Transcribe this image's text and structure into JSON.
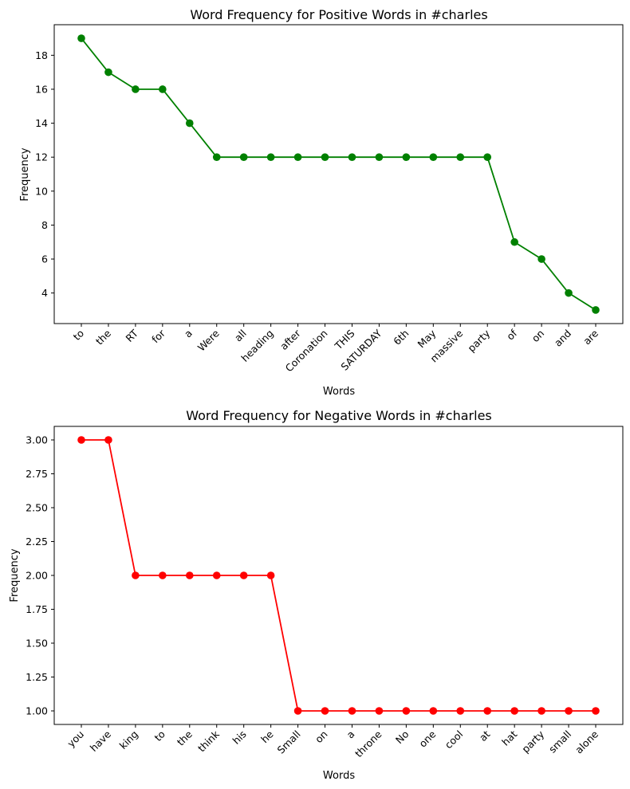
{
  "chart_data": [
    {
      "type": "line",
      "title": "Word Frequency for Positive Words in #charles",
      "xlabel": "Words",
      "ylabel": "Frequency",
      "color": "#008000",
      "categories": [
        "to",
        "the",
        "RT",
        "for",
        "a",
        "Were",
        "all",
        "heading",
        "after",
        "Coronation",
        "THIS",
        "SATURDAY",
        "6th",
        "May",
        "massive",
        "party",
        "of",
        "on",
        "and",
        "are"
      ],
      "values": [
        19,
        17,
        16,
        16,
        14,
        12,
        12,
        12,
        12,
        12,
        12,
        12,
        12,
        12,
        12,
        12,
        7,
        6,
        4,
        3
      ],
      "yticks": [
        4,
        6,
        8,
        10,
        12,
        14,
        16,
        18
      ],
      "ytick_labels": [
        "4",
        "6",
        "8",
        "10",
        "12",
        "14",
        "16",
        "18"
      ],
      "ylim": [
        2.2,
        19.8
      ],
      "xtick_rotation": 45,
      "grid": false
    },
    {
      "type": "line",
      "title": "Word Frequency for Negative Words in #charles",
      "xlabel": "Words",
      "ylabel": "Frequency",
      "color": "#ff0000",
      "categories": [
        "you",
        "have",
        "king",
        "to",
        "the",
        "think",
        "his",
        "he",
        "Small",
        "on",
        "a",
        "throne",
        "No",
        "one",
        "cool",
        "at",
        "hat",
        "party",
        "small",
        "alone"
      ],
      "values": [
        3,
        3,
        2,
        2,
        2,
        2,
        2,
        2,
        1,
        1,
        1,
        1,
        1,
        1,
        1,
        1,
        1,
        1,
        1,
        1
      ],
      "yticks": [
        1.0,
        1.25,
        1.5,
        1.75,
        2.0,
        2.25,
        2.5,
        2.75,
        3.0
      ],
      "ytick_labels": [
        "1.00",
        "1.25",
        "1.50",
        "1.75",
        "2.00",
        "2.25",
        "2.50",
        "2.75",
        "3.00"
      ],
      "ylim": [
        0.9,
        3.1
      ],
      "xtick_rotation": 45,
      "grid": false
    }
  ]
}
